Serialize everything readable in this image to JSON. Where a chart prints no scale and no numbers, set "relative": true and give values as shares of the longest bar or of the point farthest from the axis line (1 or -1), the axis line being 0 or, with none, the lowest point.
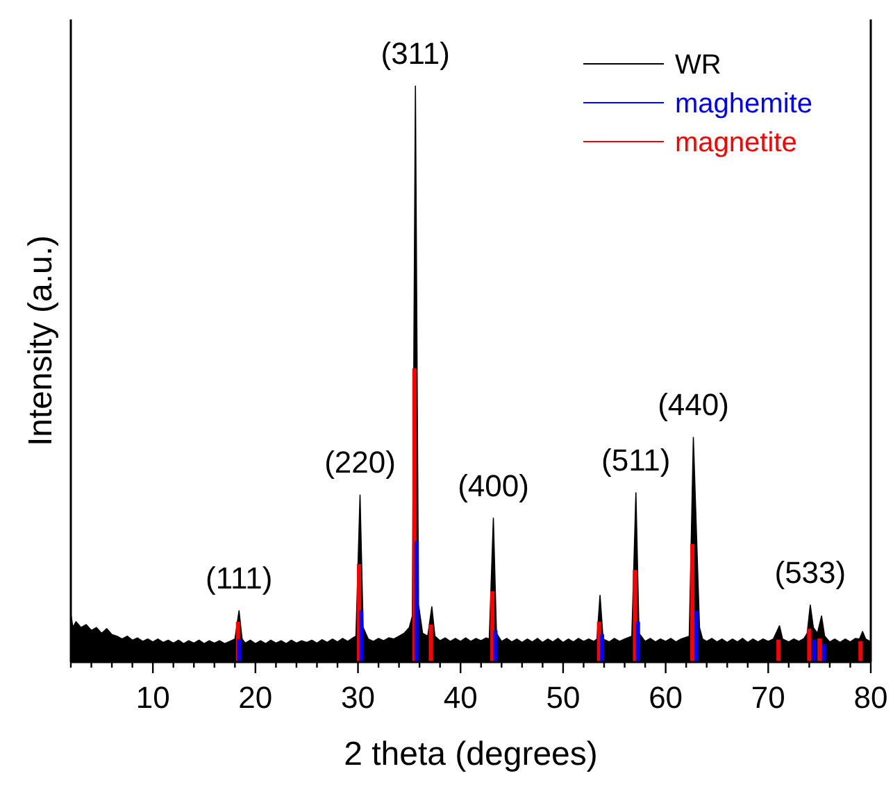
{
  "chart_data": {
    "type": "area",
    "xlabel": "2 theta (degrees)",
    "ylabel": "Intensity (a.u.)",
    "relative": true,
    "legend": "top right",
    "xlim": [
      2,
      80
    ],
    "xticks": [
      {
        "value": 2,
        "label": null
      },
      {
        "value": 4,
        "label": null
      },
      {
        "value": 6,
        "label": null
      },
      {
        "value": 8,
        "label": null
      },
      10,
      {
        "value": 12,
        "label": null
      },
      {
        "value": 14,
        "label": null
      },
      {
        "value": 16,
        "label": null
      },
      {
        "value": 18,
        "label": null
      },
      20,
      {
        "value": 22,
        "label": null
      },
      {
        "value": 24,
        "label": null
      },
      {
        "value": 26,
        "label": null
      },
      {
        "value": 28,
        "label": null
      },
      30,
      {
        "value": 32,
        "label": null
      },
      {
        "value": 34,
        "label": null
      },
      {
        "value": 36,
        "label": null
      },
      {
        "value": 38,
        "label": null
      },
      40,
      {
        "value": 42,
        "label": null
      },
      {
        "value": 44,
        "label": null
      },
      {
        "value": 46,
        "label": null
      },
      {
        "value": 48,
        "label": null
      },
      50,
      {
        "value": 52,
        "label": null
      },
      {
        "value": 54,
        "label": null
      },
      {
        "value": 56,
        "label": null
      },
      {
        "value": 58,
        "label": null
      },
      60,
      {
        "value": 62,
        "label": null
      },
      {
        "value": 64,
        "label": null
      },
      {
        "value": 66,
        "label": null
      },
      {
        "value": 68,
        "label": null
      },
      70,
      {
        "value": 72,
        "label": null
      },
      {
        "value": 74,
        "label": null
      },
      {
        "value": 76,
        "label": null
      },
      {
        "value": 78,
        "label": null
      },
      80
    ],
    "series": [
      {
        "name": "WR",
        "color": "#000000",
        "x": [
          2,
          2.2,
          2.5,
          3,
          3.5,
          4,
          4.5,
          5,
          5.5,
          6,
          6.5,
          7,
          7.5,
          8,
          8.5,
          9,
          9.5,
          10,
          10.5,
          11,
          11.5,
          12,
          12.5,
          13,
          13.5,
          14,
          14.5,
          15,
          15.5,
          16,
          16.5,
          17,
          17.5,
          18,
          18.4,
          18.7,
          19,
          19.5,
          20,
          20.5,
          21,
          21.5,
          22,
          22.5,
          23,
          23.5,
          24,
          24.5,
          25,
          25.5,
          26,
          26.5,
          27,
          27.5,
          28,
          28.5,
          29,
          29.5,
          29.8,
          30.2,
          30.5,
          31,
          31.5,
          32,
          32.5,
          33,
          33.5,
          34,
          34.5,
          35,
          35.3,
          35.6,
          35.9,
          36.3,
          36.8,
          37.2,
          37.5,
          38,
          38.5,
          39,
          39.5,
          40,
          40.5,
          41,
          41.5,
          42,
          42.5,
          42.8,
          43.2,
          43.5,
          44,
          44.5,
          45,
          45.5,
          46,
          46.5,
          47,
          47.5,
          48,
          48.5,
          49,
          49.5,
          50,
          50.5,
          51,
          51.5,
          52,
          52.5,
          53,
          53.3,
          53.6,
          53.9,
          54.5,
          55,
          55.5,
          56,
          56.7,
          57.1,
          57.4,
          58,
          58.5,
          59,
          59.5,
          60,
          60.5,
          61,
          61.5,
          62.3,
          62.7,
          63.3,
          63.6,
          64,
          64.5,
          65,
          65.5,
          66,
          66.5,
          67,
          67.5,
          68,
          68.5,
          69,
          69.5,
          70,
          70.5,
          71.1,
          71.4,
          72,
          72.5,
          73,
          73.5,
          73.8,
          74.1,
          74.4,
          74.8,
          75.2,
          75.5,
          76,
          76.5,
          77,
          77.5,
          78,
          78.5,
          78.9,
          79.2,
          79.5,
          80
        ],
        "values": [
          0.084,
          0.06,
          0.07,
          0.06,
          0.065,
          0.055,
          0.06,
          0.05,
          0.058,
          0.048,
          0.045,
          0.04,
          0.045,
          0.038,
          0.042,
          0.036,
          0.04,
          0.035,
          0.04,
          0.034,
          0.038,
          0.033,
          0.038,
          0.032,
          0.037,
          0.033,
          0.038,
          0.032,
          0.037,
          0.033,
          0.037,
          0.032,
          0.036,
          0.04,
          0.089,
          0.04,
          0.033,
          0.038,
          0.032,
          0.037,
          0.032,
          0.038,
          0.033,
          0.037,
          0.032,
          0.038,
          0.033,
          0.037,
          0.034,
          0.038,
          0.033,
          0.039,
          0.034,
          0.04,
          0.035,
          0.041,
          0.036,
          0.042,
          0.045,
          0.29,
          0.06,
          0.04,
          0.036,
          0.041,
          0.037,
          0.042,
          0.04,
          0.045,
          0.05,
          0.06,
          0.08,
          1.0,
          0.1,
          0.05,
          0.045,
          0.096,
          0.045,
          0.037,
          0.042,
          0.036,
          0.041,
          0.036,
          0.042,
          0.036,
          0.041,
          0.037,
          0.042,
          0.04,
          0.25,
          0.05,
          0.036,
          0.041,
          0.035,
          0.04,
          0.034,
          0.04,
          0.035,
          0.041,
          0.034,
          0.04,
          0.035,
          0.041,
          0.034,
          0.04,
          0.035,
          0.041,
          0.036,
          0.04,
          0.036,
          0.04,
          0.116,
          0.04,
          0.035,
          0.041,
          0.036,
          0.04,
          0.045,
          0.294,
          0.05,
          0.036,
          0.041,
          0.035,
          0.04,
          0.036,
          0.041,
          0.035,
          0.04,
          0.045,
          0.39,
          0.06,
          0.04,
          0.036,
          0.041,
          0.035,
          0.04,
          0.034,
          0.04,
          0.035,
          0.041,
          0.034,
          0.04,
          0.035,
          0.04,
          0.036,
          0.04,
          0.063,
          0.04,
          0.035,
          0.04,
          0.036,
          0.041,
          0.05,
          0.099,
          0.06,
          0.05,
          0.08,
          0.045,
          0.035,
          0.04,
          0.034,
          0.04,
          0.035,
          0.041,
          0.04,
          0.053,
          0.04,
          0.035
        ]
      },
      {
        "name": "maghemite",
        "type": "bar",
        "color": "#0000ff",
        "x": [
          18.4,
          30.3,
          35.7,
          43.4,
          53.8,
          57.3,
          63.0,
          74.5,
          75.4
        ],
        "values": [
          0.04,
          0.09,
          0.21,
          0.055,
          0.048,
          0.07,
          0.089,
          0.039,
          0.031
        ]
      },
      {
        "name": "magnetite",
        "type": "bar",
        "color": "#ff0000",
        "x": [
          18.3,
          30.1,
          35.5,
          37.1,
          43.1,
          53.5,
          57.0,
          62.6,
          71.0,
          74.0,
          75.0,
          79.0
        ],
        "values": [
          0.07,
          0.17,
          0.51,
          0.065,
          0.123,
          0.07,
          0.16,
          0.205,
          0.039,
          0.058,
          0.041,
          0.036
        ]
      }
    ],
    "annotations": [
      {
        "text": "(111)",
        "x": 18.4,
        "y": 0.089
      },
      {
        "text": "(220)",
        "x": 30.2,
        "y": 0.29
      },
      {
        "text": "(311)",
        "x": 35.6,
        "y": 1.0
      },
      {
        "text": "(400)",
        "x": 43.2,
        "y": 0.25
      },
      {
        "text": "(511)",
        "x": 57.1,
        "y": 0.294
      },
      {
        "text": "(440)",
        "x": 62.7,
        "y": 0.39
      },
      {
        "text": "(533)",
        "x": 74.1,
        "y": 0.099
      }
    ]
  }
}
